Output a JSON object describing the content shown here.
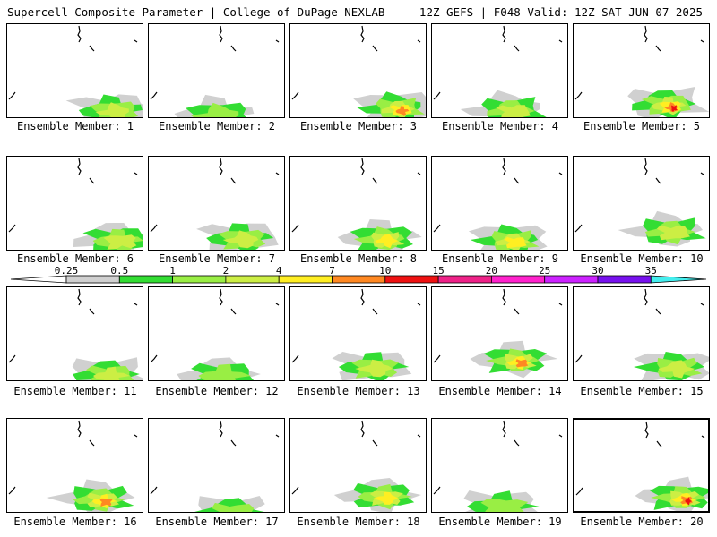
{
  "header": {
    "left": "Supercell Composite Parameter | College of DuPage NEXLAB",
    "right": "12Z GEFS | F048 Valid: 12Z SAT JUN 07 2025"
  },
  "caption_prefix": "Ensemble Member:",
  "members": [
    {
      "id": 1,
      "label": "Ensemble Member: 1",
      "selected": false,
      "max_level": 2
    },
    {
      "id": 2,
      "label": "Ensemble Member: 2",
      "selected": false,
      "max_level": 1
    },
    {
      "id": 3,
      "label": "Ensemble Member: 3",
      "selected": false,
      "max_level": 7
    },
    {
      "id": 4,
      "label": "Ensemble Member: 4",
      "selected": false,
      "max_level": 2
    },
    {
      "id": 5,
      "label": "Ensemble Member: 5",
      "selected": false,
      "max_level": 10
    },
    {
      "id": 6,
      "label": "Ensemble Member: 6",
      "selected": false,
      "max_level": 2
    },
    {
      "id": 7,
      "label": "Ensemble Member: 7",
      "selected": false,
      "max_level": 2
    },
    {
      "id": 8,
      "label": "Ensemble Member: 8",
      "selected": false,
      "max_level": 4
    },
    {
      "id": 9,
      "label": "Ensemble Member: 9",
      "selected": false,
      "max_level": 4
    },
    {
      "id": 10,
      "label": "Ensemble Member: 10",
      "selected": false,
      "max_level": 2
    },
    {
      "id": 11,
      "label": "Ensemble Member: 11",
      "selected": false,
      "max_level": 2
    },
    {
      "id": 12,
      "label": "Ensemble Member: 12",
      "selected": false,
      "max_level": 1
    },
    {
      "id": 13,
      "label": "Ensemble Member: 13",
      "selected": false,
      "max_level": 2
    },
    {
      "id": 14,
      "label": "Ensemble Member: 14",
      "selected": false,
      "max_level": 7
    },
    {
      "id": 15,
      "label": "Ensemble Member: 15",
      "selected": false,
      "max_level": 2
    },
    {
      "id": 16,
      "label": "Ensemble Member: 16",
      "selected": false,
      "max_level": 7
    },
    {
      "id": 17,
      "label": "Ensemble Member: 17",
      "selected": false,
      "max_level": 1
    },
    {
      "id": 18,
      "label": "Ensemble Member: 18",
      "selected": false,
      "max_level": 4
    },
    {
      "id": 19,
      "label": "Ensemble Member: 19",
      "selected": false,
      "max_level": 1
    },
    {
      "id": 20,
      "label": "Ensemble Member: 20",
      "selected": true,
      "max_level": 10
    }
  ],
  "colorbar": {
    "labels": [
      "0.25",
      "0.5",
      "1",
      "2",
      "4",
      "7",
      "10",
      "15",
      "20",
      "25",
      "30",
      "35"
    ],
    "colors": [
      "#d0d0d0",
      "#33dd33",
      "#99ee44",
      "#ccee44",
      "#ffee22",
      "#ff8822",
      "#ee1111",
      "#ee2288",
      "#ff22cc",
      "#cc22ff",
      "#7711ee",
      "#aa66dd",
      "#44eeee"
    ]
  }
}
